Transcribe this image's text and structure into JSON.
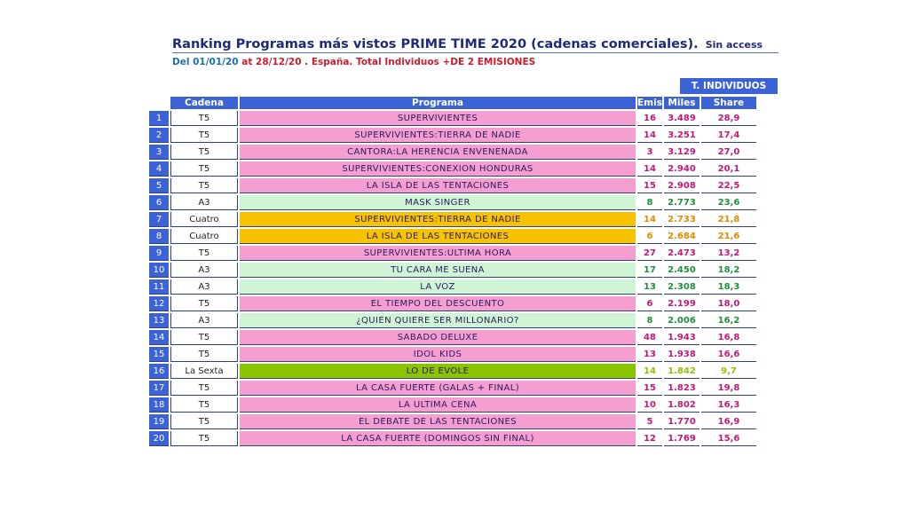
{
  "title": "Ranking Programas más vistos PRIME TIME 2020 (cadenas comerciales).",
  "title_tag": "Sin access",
  "subtitle": {
    "prefix": "Del ",
    "date_from": "01/01/20",
    "rest": " at 28/12/20 . España. Total Individuos +DE 2 EMISIONES"
  },
  "group_header": "T. INDIVIDUOS",
  "columns": {
    "cadena": "Cadena",
    "programa": "Programa",
    "emis": "Emis",
    "miles": "Miles",
    "share": "Share"
  },
  "channel_colors": {
    "T5": "#f59ed0",
    "A3": "#cff5d4",
    "Cuatro": "#f7c200",
    "La Sexta": "#8bc400"
  },
  "rows": [
    {
      "pos": "1",
      "cadena": "T5",
      "programa": "SUPERVIVIENTES",
      "emis": "16",
      "miles": "3.489",
      "share": "28,9"
    },
    {
      "pos": "2",
      "cadena": "T5",
      "programa": "SUPERVIVIENTES:TIERRA DE NADIE",
      "emis": "14",
      "miles": "3.251",
      "share": "17,4"
    },
    {
      "pos": "3",
      "cadena": "T5",
      "programa": "CANTORA:LA HERENCIA ENVENENADA",
      "emis": "3",
      "miles": "3.129",
      "share": "27,0"
    },
    {
      "pos": "4",
      "cadena": "T5",
      "programa": "SUPERVIVIENTES:CONEXION HONDURAS",
      "emis": "14",
      "miles": "2.940",
      "share": "20,1"
    },
    {
      "pos": "5",
      "cadena": "T5",
      "programa": "LA ISLA DE LAS TENTACIONES",
      "emis": "15",
      "miles": "2.908",
      "share": "22,5"
    },
    {
      "pos": "6",
      "cadena": "A3",
      "programa": "MASK SINGER",
      "emis": "8",
      "miles": "2.773",
      "share": "23,6"
    },
    {
      "pos": "7",
      "cadena": "Cuatro",
      "programa": "SUPERVIVIENTES:TIERRA DE NADIE",
      "emis": "14",
      "miles": "2.733",
      "share": "21,8"
    },
    {
      "pos": "8",
      "cadena": "Cuatro",
      "programa": "LA ISLA DE LAS TENTACIONES",
      "emis": "6",
      "miles": "2.684",
      "share": "21,6"
    },
    {
      "pos": "9",
      "cadena": "T5",
      "programa": "SUPERVIVIENTES:ULTIMA HORA",
      "emis": "27",
      "miles": "2.473",
      "share": "13,2"
    },
    {
      "pos": "10",
      "cadena": "A3",
      "programa": "TU CARA ME SUENA",
      "emis": "17",
      "miles": "2.450",
      "share": "18,2"
    },
    {
      "pos": "11",
      "cadena": "A3",
      "programa": "LA VOZ",
      "emis": "13",
      "miles": "2.308",
      "share": "18,3"
    },
    {
      "pos": "12",
      "cadena": "T5",
      "programa": "EL TIEMPO DEL DESCUENTO",
      "emis": "6",
      "miles": "2.199",
      "share": "18,0"
    },
    {
      "pos": "13",
      "cadena": "A3",
      "programa": "¿QUIEN QUIERE SER MILLONARIO?",
      "emis": "8",
      "miles": "2.006",
      "share": "16,2"
    },
    {
      "pos": "14",
      "cadena": "T5",
      "programa": "SABADO DELUXE",
      "emis": "48",
      "miles": "1.943",
      "share": "16,8"
    },
    {
      "pos": "15",
      "cadena": "T5",
      "programa": "IDOL KIDS",
      "emis": "13",
      "miles": "1.938",
      "share": "16,6"
    },
    {
      "pos": "16",
      "cadena": "La Sexta",
      "programa": "LO DE EVOLE",
      "emis": "14",
      "miles": "1.842",
      "share": "9,7"
    },
    {
      "pos": "17",
      "cadena": "T5",
      "programa": "LA CASA FUERTE (GALAS + FINAL)",
      "emis": "15",
      "miles": "1.823",
      "share": "19,8"
    },
    {
      "pos": "18",
      "cadena": "T5",
      "programa": "LA ULTIMA CENA",
      "emis": "10",
      "miles": "1.802",
      "share": "16,3"
    },
    {
      "pos": "19",
      "cadena": "T5",
      "programa": "EL DEBATE DE LAS TENTACIONES",
      "emis": "5",
      "miles": "1.770",
      "share": "16,9"
    },
    {
      "pos": "20",
      "cadena": "T5",
      "programa": "LA CASA FUERTE (DOMINGOS SIN FINAL)",
      "emis": "12",
      "miles": "1.769",
      "share": "15,6"
    }
  ]
}
